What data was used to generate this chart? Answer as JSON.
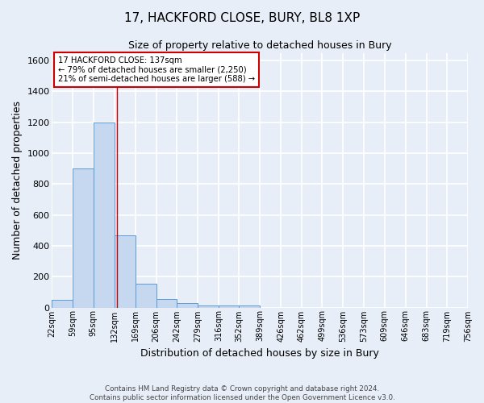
{
  "title1": "17, HACKFORD CLOSE, BURY, BL8 1XP",
  "title2": "Size of property relative to detached houses in Bury",
  "xlabel": "Distribution of detached houses by size in Bury",
  "ylabel": "Number of detached properties",
  "footer1": "Contains HM Land Registry data © Crown copyright and database right 2024.",
  "footer2": "Contains public sector information licensed under the Open Government Licence v3.0.",
  "annotation_line1": "17 HACKFORD CLOSE: 137sqm",
  "annotation_line2": "← 79% of detached houses are smaller (2,250)",
  "annotation_line3": "21% of semi-detached houses are larger (588) →",
  "bar_edges": [
    22,
    59,
    95,
    132,
    169,
    206,
    242,
    279,
    316,
    352,
    389,
    426,
    462,
    499,
    536,
    573,
    609,
    646,
    683,
    719,
    756
  ],
  "bar_heights": [
    50,
    900,
    1200,
    470,
    155,
    55,
    30,
    15,
    12,
    12,
    0,
    0,
    0,
    0,
    0,
    0,
    0,
    0,
    0,
    0
  ],
  "bar_color": "#c5d8f0",
  "bar_edge_color": "#5b9bd5",
  "property_line_x": 137,
  "ylim": [
    0,
    1650
  ],
  "yticks": [
    0,
    200,
    400,
    600,
    800,
    1000,
    1200,
    1400,
    1600
  ],
  "xlim_left": 22,
  "xlim_right": 756,
  "background_color": "#e8eef8",
  "grid_color": "#ffffff",
  "annotation_box_color": "#ffffff",
  "annotation_box_edge_color": "#cc0000",
  "tick_labels": [
    "22sqm",
    "59sqm",
    "95sqm",
    "132sqm",
    "169sqm",
    "206sqm",
    "242sqm",
    "279sqm",
    "316sqm",
    "352sqm",
    "389sqm",
    "426sqm",
    "462sqm",
    "499sqm",
    "536sqm",
    "573sqm",
    "609sqm",
    "646sqm",
    "683sqm",
    "719sqm",
    "756sqm"
  ]
}
